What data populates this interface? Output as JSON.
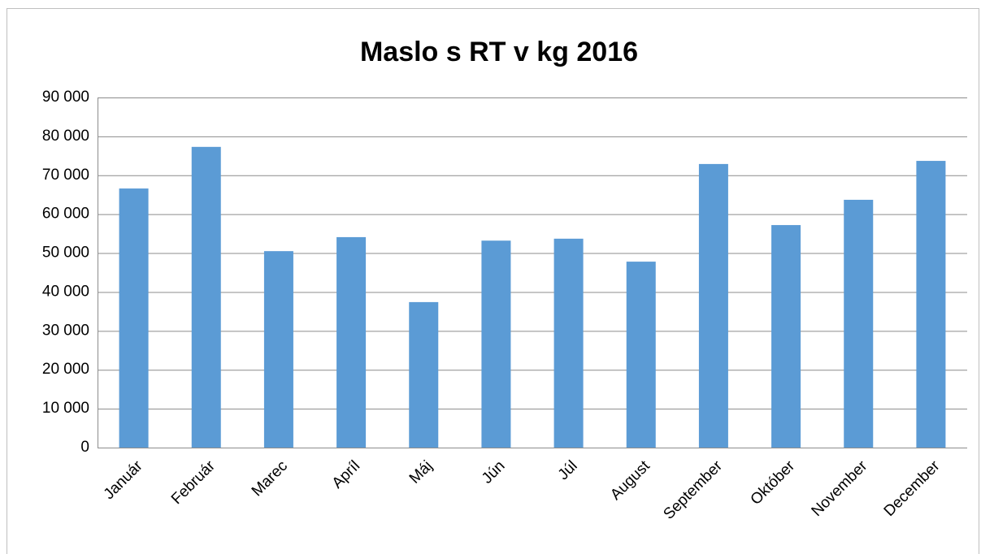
{
  "chart_data": {
    "type": "bar",
    "title": "Maslo s RT v kg 2016",
    "categories": [
      "Január",
      "Február",
      "Marec",
      "Apríl",
      "Máj",
      "Jún",
      "Júl",
      "August",
      "September",
      "Október",
      "November",
      "December"
    ],
    "values": [
      66600,
      77300,
      50500,
      54100,
      37400,
      53200,
      53700,
      47800,
      72900,
      57200,
      63700,
      73700
    ],
    "color": "#5b9bd5",
    "ylim": [
      0,
      90000
    ],
    "yticks": [
      0,
      {
        "value": 10000,
        "label": "10 000"
      },
      {
        "value": 20000,
        "label": "20 000"
      },
      {
        "value": 30000,
        "label": "30 000"
      },
      {
        "value": 40000,
        "label": "40 000"
      },
      {
        "value": 50000,
        "label": "50 000"
      },
      {
        "value": 60000,
        "label": "60 000"
      },
      {
        "value": 70000,
        "label": "70 000"
      },
      {
        "value": 80000,
        "label": "80 000"
      },
      {
        "value": 90000,
        "label": "90 000"
      }
    ],
    "grid": true
  }
}
